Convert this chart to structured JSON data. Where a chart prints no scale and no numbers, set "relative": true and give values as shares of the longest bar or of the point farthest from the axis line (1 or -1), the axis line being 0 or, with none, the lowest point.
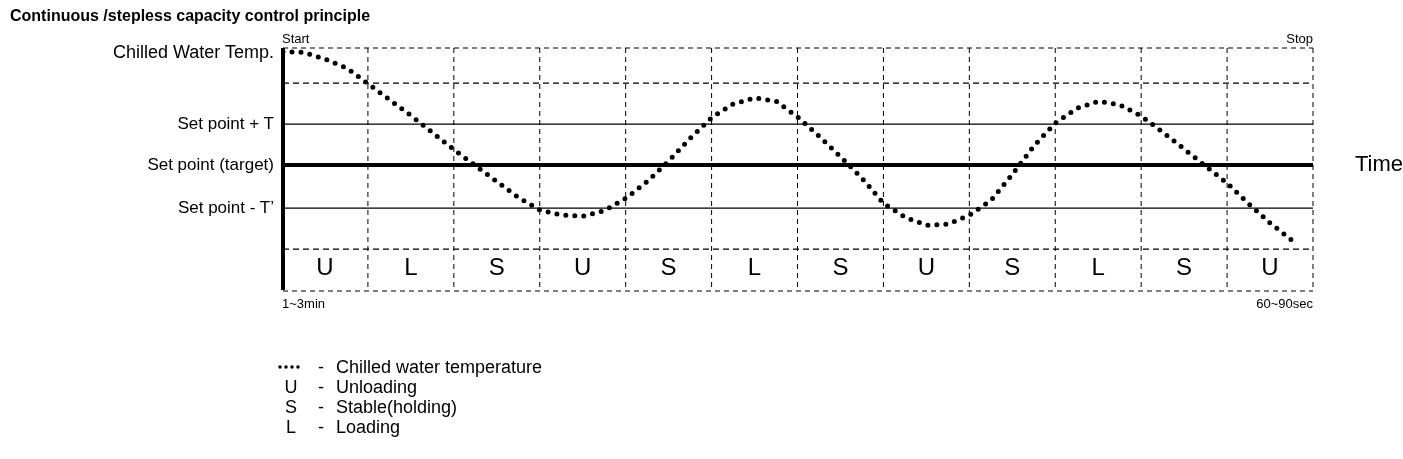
{
  "chart_data": {
    "type": "line",
    "relative": true,
    "title": "Continuous /stepless capacity control principle",
    "ylabel": "Chilled Water Temp.",
    "xlabel": "Time",
    "categories": [
      null,
      null,
      null,
      null,
      null,
      null,
      null,
      null,
      null,
      null,
      null,
      null,
      null,
      null,
      null,
      null,
      null,
      null,
      null,
      null,
      null,
      null,
      null,
      null,
      null,
      null,
      null,
      null,
      null,
      null,
      null,
      null,
      null,
      null,
      null,
      null,
      null,
      null,
      null,
      null,
      null,
      null,
      null,
      null,
      null,
      null,
      null,
      null
    ],
    "grid": "x",
    "marker": "none",
    "line_style": "dotted",
    "legend": "bottom",
    "series": [
      {
        "name": "Chilled water temperature",
        "color": "#000000",
        "values": [
          1.0,
          0.99,
          0.93,
          0.85,
          0.71,
          0.57,
          0.43,
          0.28,
          0.13,
          -0.01,
          -0.15,
          -0.29,
          -0.4,
          -0.44,
          -0.45,
          -0.4,
          -0.29,
          -0.14,
          0.04,
          0.24,
          0.42,
          0.54,
          0.59,
          0.56,
          0.42,
          0.25,
          0.07,
          -0.12,
          -0.34,
          -0.46,
          -0.53,
          -0.52,
          -0.44,
          -0.31,
          -0.08,
          0.17,
          0.37,
          0.5,
          0.56,
          0.53,
          0.43,
          0.29,
          0.14,
          -0.01,
          -0.16,
          -0.34,
          -0.51,
          -0.66
        ]
      }
    ],
    "ref_lines": [
      {
        "axis": "y",
        "value": 0.72,
        "label": null,
        "color": "#000000",
        "line_style": "dashed"
      },
      {
        "axis": "y",
        "value": 0.36,
        "label": "Set point + T",
        "color": "#000000",
        "line_style": "solid"
      },
      {
        "axis": "y",
        "value": 0,
        "label": "Set point (target)",
        "color": "#000000",
        "line_style": "solid"
      },
      {
        "axis": "y",
        "value": -0.38,
        "label": "Set point - T’",
        "color": "#000000",
        "line_style": "solid"
      },
      {
        "axis": "y",
        "value": -0.74,
        "label": null,
        "color": "#000000",
        "line_style": "dashed"
      }
    ],
    "annotations": [
      "Start",
      "Stop",
      "1~3min",
      "60~90sec",
      "U",
      "L",
      "S",
      "U",
      "S",
      "L",
      "S",
      "U",
      "S",
      "L",
      "S",
      "U",
      "-",
      "U - Unloading",
      "S - Stable(holding)",
      "L - Loading"
    ]
  }
}
